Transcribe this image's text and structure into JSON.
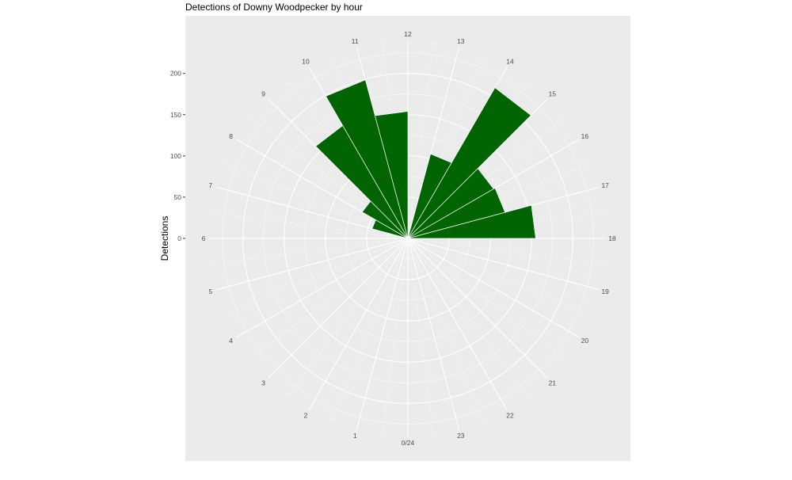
{
  "chart_data": {
    "type": "bar",
    "subtype": "polar",
    "title": "Detections of Downy Woodpecker by hour",
    "ylabel": "Detections",
    "xlabel": "",
    "y_ticks": [
      0,
      50,
      100,
      150,
      200
    ],
    "ylim": [
      0,
      240
    ],
    "x_tick_labels": [
      "0/24",
      "1",
      "2",
      "3",
      "4",
      "5",
      "6",
      "7",
      "8",
      "9",
      "10",
      "11",
      "12",
      "13",
      "14",
      "15",
      "16",
      "17",
      "18",
      "19",
      "20",
      "21",
      "22",
      "23"
    ],
    "categories": [
      0,
      1,
      2,
      3,
      4,
      5,
      6,
      7,
      8,
      9,
      10,
      11,
      12,
      13,
      14,
      15,
      16,
      17,
      18,
      19,
      20,
      21,
      22,
      23
    ],
    "values": [
      0,
      0,
      0,
      0,
      0,
      0,
      0,
      45,
      64,
      158,
      199,
      154,
      0,
      106,
      211,
      120,
      122,
      155,
      0,
      0,
      0,
      0,
      0,
      0
    ],
    "grid": true,
    "legend": "none",
    "colors": {
      "bar": "#006400",
      "panel": "#ebebeb",
      "grid": "#ffffff",
      "tick_text": "#4d4d4d"
    }
  }
}
